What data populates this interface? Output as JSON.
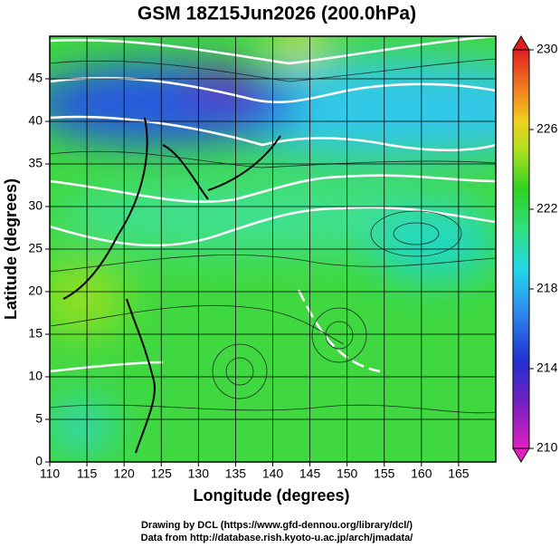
{
  "chart_data": {
    "type": "map",
    "title": "GSM 18Z15Jun2026 (200.0hPa)",
    "xlabel": "Longitude (degrees)",
    "ylabel": "Latitude  (degrees)",
    "xlim": [
      110,
      170
    ],
    "ylim": [
      0,
      50
    ],
    "xticks": [
      110,
      115,
      120,
      125,
      130,
      135,
      140,
      145,
      150,
      155,
      160,
      165
    ],
    "yticks": [
      0,
      5,
      10,
      15,
      20,
      25,
      30,
      35,
      40,
      45
    ],
    "grid": true,
    "colorbar": {
      "lim": [
        210,
        230
      ],
      "ticks": [
        210,
        214,
        218,
        222,
        226,
        230
      ]
    },
    "credits": [
      "Drawing by DCL (https://www.gfd-dennou.org/library/dcl/)",
      "Data from http://database.rish.kyoto-u.ac.jp/arch/jmadata/"
    ]
  }
}
